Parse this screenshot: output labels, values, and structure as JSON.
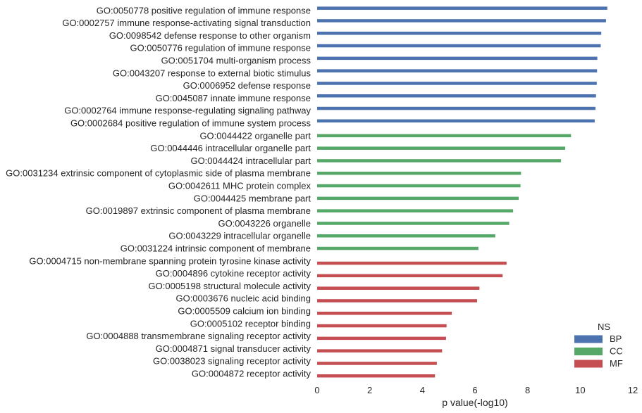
{
  "chart_data": {
    "type": "bar",
    "orientation": "horizontal",
    "xlabel": "p value(-log10)",
    "ylabel": "",
    "xlim": [
      0,
      12
    ],
    "xticks": [
      0,
      2,
      4,
      6,
      8,
      10,
      12
    ],
    "grid": false,
    "legend": {
      "title": "NS",
      "placement": "bottom-right",
      "entries": [
        {
          "name": "BP",
          "color": "#4c72b0"
        },
        {
          "name": "CC",
          "color": "#55a868"
        },
        {
          "name": "MF",
          "color": "#c44e52"
        }
      ]
    },
    "categories": [
      "GO:0050778 positive regulation of immune response",
      "GO:0002757 immune response-activating signal transduction",
      "GO:0098542 defense response to other organism",
      "GO:0050776 regulation of immune response",
      "GO:0051704 multi-organism process",
      "GO:0043207 response to external biotic stimulus",
      "GO:0006952 defense response",
      "GO:0045087 innate immune response",
      "GO:0002764 immune response-regulating signaling pathway",
      "GO:0002684 positive regulation of immune system process",
      "GO:0044422 organelle part",
      "GO:0044446 intracellular organelle part",
      "GO:0044424 intracellular part",
      "GO:0031234 extrinsic component of cytoplasmic side of plasma membrane",
      "GO:0042611 MHC protein complex",
      "GO:0044425 membrane part",
      "GO:0019897 extrinsic component of plasma membrane",
      "GO:0043226 organelle",
      "GO:0043229 intracellular organelle",
      "GO:0031224 intrinsic component of membrane",
      "GO:0004715 non-membrane spanning protein tyrosine kinase activity",
      "GO:0004896 cytokine receptor activity",
      "GO:0005198 structural molecule activity",
      "GO:0003676 nucleic acid binding",
      "GO:0005509 calcium ion binding",
      "GO:0005102 receptor binding",
      "GO:0004888 transmembrane signaling receptor activity",
      "GO:0004871 signal transducer activity",
      "GO:0038023 signaling receptor activity",
      "GO:0004872 receptor activity"
    ],
    "values": [
      11.03,
      10.98,
      10.8,
      10.78,
      10.65,
      10.64,
      10.63,
      10.6,
      10.58,
      10.55,
      9.65,
      9.43,
      9.27,
      7.75,
      7.73,
      7.66,
      7.45,
      7.3,
      6.77,
      6.13,
      7.2,
      7.05,
      6.17,
      6.08,
      5.12,
      4.92,
      4.9,
      4.75,
      4.55,
      4.48
    ],
    "groups": [
      "BP",
      "BP",
      "BP",
      "BP",
      "BP",
      "BP",
      "BP",
      "BP",
      "BP",
      "BP",
      "CC",
      "CC",
      "CC",
      "CC",
      "CC",
      "CC",
      "CC",
      "CC",
      "CC",
      "CC",
      "MF",
      "MF",
      "MF",
      "MF",
      "MF",
      "MF",
      "MF",
      "MF",
      "MF",
      "MF"
    ]
  }
}
